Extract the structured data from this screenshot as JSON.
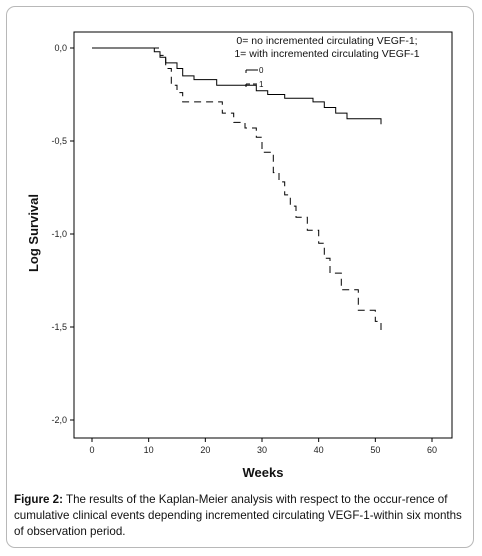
{
  "chart_data": {
    "type": "line",
    "xlabel": "Weeks",
    "ylabel": "Log Survival",
    "xlim": [
      0,
      60
    ],
    "ylim": [
      -2.0,
      0.0
    ],
    "xticks": [
      "0",
      "10",
      "20",
      "30",
      "40",
      "50",
      "60"
    ],
    "yticks": [
      "0,0",
      "-0,5",
      "-1,0",
      "-1,5",
      "-2,0"
    ],
    "grid": false,
    "legend_position": "top-right",
    "legend_note": [
      "0= no incremented circulating VEGF-1;",
      "1= with incremented circulating VEGF-1"
    ],
    "series": [
      {
        "name": "0",
        "style": "solid",
        "points": [
          [
            0,
            0.0
          ],
          [
            10,
            0.0
          ],
          [
            11,
            -0.02
          ],
          [
            12,
            -0.05
          ],
          [
            13,
            -0.08
          ],
          [
            15,
            -0.11
          ],
          [
            16,
            -0.15
          ],
          [
            18,
            -0.17
          ],
          [
            22,
            -0.2
          ],
          [
            27,
            -0.2
          ],
          [
            29,
            -0.23
          ],
          [
            31,
            -0.25
          ],
          [
            34,
            -0.27
          ],
          [
            39,
            -0.29
          ],
          [
            41,
            -0.32
          ],
          [
            43,
            -0.35
          ],
          [
            45,
            -0.38
          ],
          [
            51,
            -0.38
          ],
          [
            51,
            -0.41
          ]
        ]
      },
      {
        "name": "1",
        "style": "dashed",
        "points": [
          [
            0,
            0.0
          ],
          [
            10,
            0.0
          ],
          [
            12,
            -0.04
          ],
          [
            13,
            -0.11
          ],
          [
            14,
            -0.2
          ],
          [
            15,
            -0.24
          ],
          [
            16,
            -0.29
          ],
          [
            23,
            -0.35
          ],
          [
            25,
            -0.4
          ],
          [
            27,
            -0.43
          ],
          [
            29,
            -0.48
          ],
          [
            30,
            -0.56
          ],
          [
            32,
            -0.67
          ],
          [
            33,
            -0.72
          ],
          [
            34,
            -0.79
          ],
          [
            35,
            -0.85
          ],
          [
            36,
            -0.91
          ],
          [
            38,
            -0.98
          ],
          [
            40,
            -1.05
          ],
          [
            41,
            -1.13
          ],
          [
            42,
            -1.21
          ],
          [
            44,
            -1.3
          ],
          [
            47,
            -1.41
          ],
          [
            50,
            -1.47
          ],
          [
            51,
            -1.53
          ]
        ]
      }
    ]
  },
  "caption": {
    "label": "Figure 2:",
    "text": "The results of the Kaplan-Meier analysis with respect to the occur-rence of cumulative clinical events depending incremented circulating VEGF-1-within six months of observation period."
  }
}
